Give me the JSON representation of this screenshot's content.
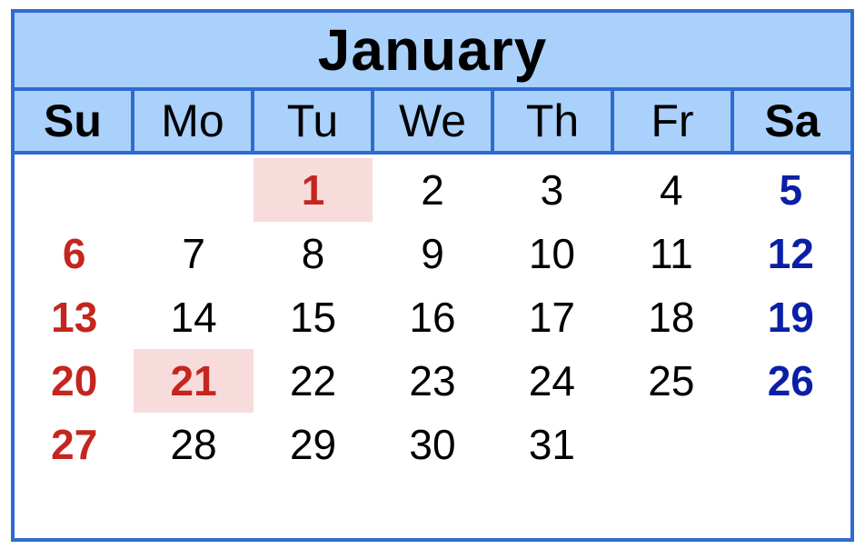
{
  "calendar": {
    "month": "January",
    "weekdays": [
      "Su",
      "Mo",
      "Tu",
      "We",
      "Th",
      "Fr",
      "Sa"
    ],
    "weeks": [
      [
        "",
        "",
        "1",
        "2",
        "3",
        "4",
        "5"
      ],
      [
        "6",
        "7",
        "8",
        "9",
        "10",
        "11",
        "12"
      ],
      [
        "13",
        "14",
        "15",
        "16",
        "17",
        "18",
        "19"
      ],
      [
        "20",
        "21",
        "22",
        "23",
        "24",
        "25",
        "26"
      ],
      [
        "27",
        "28",
        "29",
        "30",
        "31",
        "",
        ""
      ]
    ],
    "highlighted_days": [
      "1",
      "21"
    ],
    "colors": {
      "border": "#2f6bd1",
      "header_bg": "#a9d1fb",
      "sunday": "#c4261f",
      "saturday": "#0b1fa6",
      "highlight_bg": "#f8dcdc"
    }
  }
}
